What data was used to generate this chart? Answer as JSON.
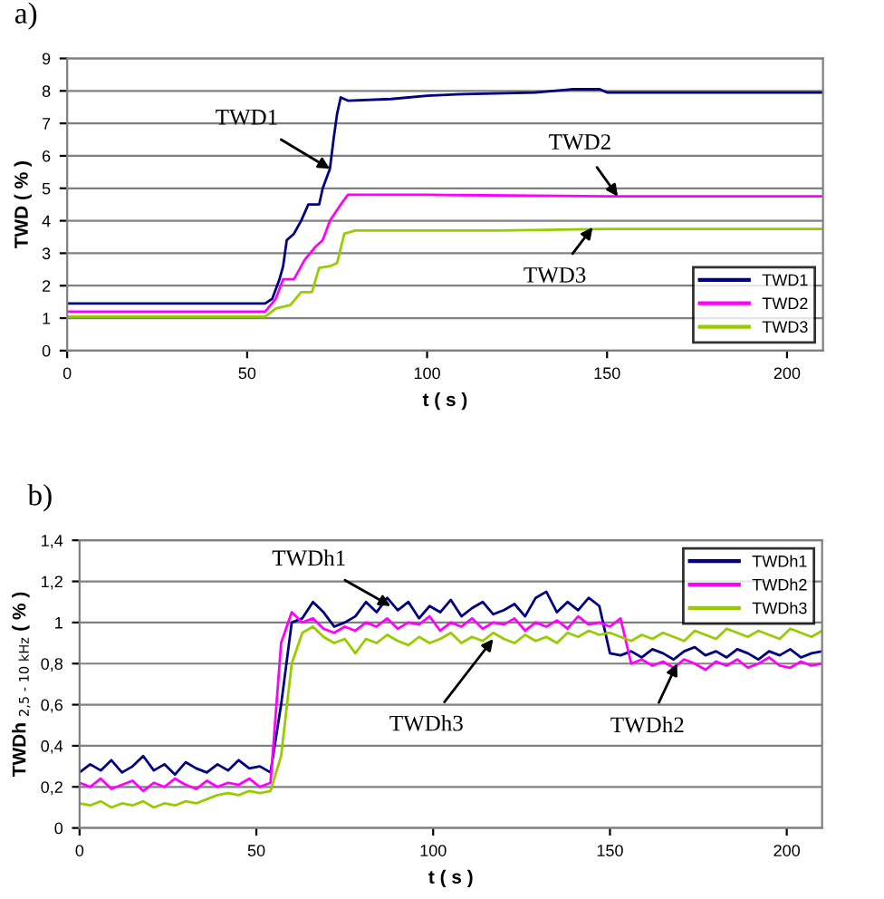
{
  "chart_data": [
    {
      "type": "line",
      "title": "a)",
      "xlabel": "t ( s )",
      "ylabel": "TWD ( % )",
      "xlim": [
        0,
        210
      ],
      "xticks": [
        0,
        50,
        100,
        150,
        200
      ],
      "ylim": [
        0,
        9
      ],
      "yticks": [
        0,
        1,
        2,
        3,
        4,
        5,
        6,
        7,
        8,
        9
      ],
      "grid": "y",
      "legend": "bottom right",
      "marker": "none",
      "line_style": "solid",
      "series": [
        {
          "name": "TWD1",
          "color": "#000080",
          "x": [
            0,
            20,
            40,
            55,
            57,
            59,
            60,
            61,
            63,
            65,
            67,
            70,
            71,
            73,
            74,
            75,
            76,
            78,
            90,
            100,
            110,
            130,
            140,
            148,
            150,
            180,
            210
          ],
          "values": [
            1.45,
            1.45,
            1.45,
            1.45,
            1.6,
            2.2,
            2.6,
            3.4,
            3.6,
            4.0,
            4.5,
            4.5,
            5.0,
            5.6,
            6.5,
            7.3,
            7.8,
            7.7,
            7.75,
            7.85,
            7.9,
            7.95,
            8.05,
            8.05,
            7.95,
            7.95,
            7.95
          ]
        },
        {
          "name": "TWD2",
          "color": "#ff00ff",
          "x": [
            0,
            20,
            40,
            55,
            58,
            60,
            63,
            66,
            69,
            71,
            73,
            76,
            78,
            100,
            150,
            180,
            210
          ],
          "values": [
            1.2,
            1.2,
            1.2,
            1.2,
            1.6,
            2.2,
            2.2,
            2.8,
            3.2,
            3.4,
            4.0,
            4.5,
            4.8,
            4.8,
            4.75,
            4.75,
            4.75
          ]
        },
        {
          "name": "TWD3",
          "color": "#99cc00",
          "x": [
            0,
            20,
            40,
            55,
            58,
            62,
            65,
            68,
            70,
            73,
            75,
            77,
            80,
            120,
            150,
            180,
            210
          ],
          "values": [
            1.05,
            1.05,
            1.05,
            1.05,
            1.3,
            1.4,
            1.8,
            1.8,
            2.55,
            2.6,
            2.7,
            3.6,
            3.7,
            3.7,
            3.75,
            3.75,
            3.75
          ]
        }
      ],
      "annotations": [
        {
          "text": "TWD1",
          "x": 73,
          "y": 5.6
        },
        {
          "text": "TWD2",
          "x": 153,
          "y": 4.75
        },
        {
          "text": "TWD3",
          "x": 146,
          "y": 3.8
        }
      ]
    },
    {
      "type": "line",
      "title": "b)",
      "xlabel": "t ( s )",
      "ylabel": "TWDh $_{2,5 - 10 kHz}$ ( % )",
      "xlim": [
        0,
        210
      ],
      "xticks": [
        0,
        50,
        100,
        150,
        200
      ],
      "ylim": [
        0,
        1.4
      ],
      "yticks": [
        0,
        {
          "value": 0.2,
          "label": "0,2"
        },
        {
          "value": 0.4,
          "label": "0,4"
        },
        {
          "value": 0.6,
          "label": "0,6"
        },
        {
          "value": 0.8,
          "label": "0,8"
        },
        1,
        {
          "value": 1.2,
          "label": "1,2"
        },
        {
          "value": 1.4,
          "label": "1,4"
        }
      ],
      "grid": "y",
      "legend": "top right",
      "marker": "none",
      "line_style": "solid",
      "x": [
        0,
        3,
        6,
        9,
        12,
        15,
        18,
        21,
        24,
        27,
        30,
        33,
        36,
        39,
        42,
        45,
        48,
        51,
        54,
        57,
        60,
        63,
        66,
        69,
        72,
        75,
        78,
        81,
        84,
        87,
        90,
        93,
        96,
        99,
        102,
        105,
        108,
        111,
        114,
        117,
        120,
        123,
        126,
        129,
        132,
        135,
        138,
        141,
        144,
        147,
        150,
        153,
        156,
        159,
        162,
        165,
        168,
        171,
        174,
        177,
        180,
        183,
        186,
        189,
        192,
        195,
        198,
        201,
        204,
        207,
        210
      ],
      "series": [
        {
          "name": "TWDh1",
          "color": "#000080",
          "values": [
            0.27,
            0.31,
            0.28,
            0.33,
            0.27,
            0.3,
            0.35,
            0.28,
            0.31,
            0.26,
            0.32,
            0.29,
            0.27,
            0.31,
            0.28,
            0.33,
            0.29,
            0.3,
            0.27,
            0.6,
            1.0,
            1.02,
            1.1,
            1.05,
            0.98,
            1.0,
            1.03,
            1.1,
            1.05,
            1.12,
            1.06,
            1.1,
            1.02,
            1.08,
            1.05,
            1.11,
            1.03,
            1.07,
            1.1,
            1.04,
            1.06,
            1.09,
            1.03,
            1.12,
            1.15,
            1.05,
            1.1,
            1.06,
            1.12,
            1.08,
            0.85,
            0.84,
            0.86,
            0.83,
            0.87,
            0.85,
            0.82,
            0.86,
            0.88,
            0.84,
            0.86,
            0.83,
            0.87,
            0.85,
            0.82,
            0.86,
            0.84,
            0.87,
            0.83,
            0.85,
            0.86
          ]
        },
        {
          "name": "TWDh2",
          "color": "#ff00ff",
          "values": [
            0.22,
            0.2,
            0.24,
            0.19,
            0.21,
            0.23,
            0.18,
            0.22,
            0.2,
            0.24,
            0.21,
            0.19,
            0.23,
            0.2,
            0.22,
            0.21,
            0.24,
            0.2,
            0.22,
            0.9,
            1.05,
            1.0,
            1.02,
            0.97,
            0.95,
            0.98,
            0.96,
            1.0,
            0.98,
            1.02,
            0.97,
            1.0,
            0.99,
            1.03,
            0.96,
            1.0,
            0.98,
            1.02,
            0.97,
            1.0,
            0.99,
            1.02,
            0.96,
            1.0,
            0.98,
            1.01,
            0.97,
            1.03,
            0.99,
            1.0,
            0.98,
            1.02,
            0.8,
            0.82,
            0.79,
            0.81,
            0.78,
            0.82,
            0.8,
            0.77,
            0.81,
            0.79,
            0.82,
            0.78,
            0.8,
            0.83,
            0.79,
            0.78,
            0.81,
            0.79,
            0.8
          ]
        },
        {
          "name": "TWDh3",
          "color": "#99cc00",
          "values": [
            0.12,
            0.11,
            0.13,
            0.1,
            0.12,
            0.11,
            0.13,
            0.1,
            0.12,
            0.11,
            0.13,
            0.12,
            0.14,
            0.16,
            0.17,
            0.16,
            0.18,
            0.17,
            0.18,
            0.35,
            0.8,
            0.95,
            0.98,
            0.93,
            0.9,
            0.92,
            0.85,
            0.92,
            0.9,
            0.94,
            0.91,
            0.89,
            0.93,
            0.9,
            0.92,
            0.95,
            0.9,
            0.93,
            0.91,
            0.95,
            0.92,
            0.9,
            0.94,
            0.91,
            0.93,
            0.9,
            0.95,
            0.93,
            0.96,
            0.94,
            0.95,
            0.93,
            0.91,
            0.94,
            0.92,
            0.95,
            0.93,
            0.91,
            0.96,
            0.94,
            0.92,
            0.97,
            0.95,
            0.93,
            0.96,
            0.94,
            0.92,
            0.97,
            0.95,
            0.93,
            0.96
          ]
        }
      ],
      "annotations": [
        {
          "text": "TWDh1",
          "x": 88,
          "y": 1.08
        },
        {
          "text": "TWDh3",
          "x": 117,
          "y": 0.92
        },
        {
          "text": "TWDh2",
          "x": 169,
          "y": 0.8
        }
      ]
    }
  ]
}
